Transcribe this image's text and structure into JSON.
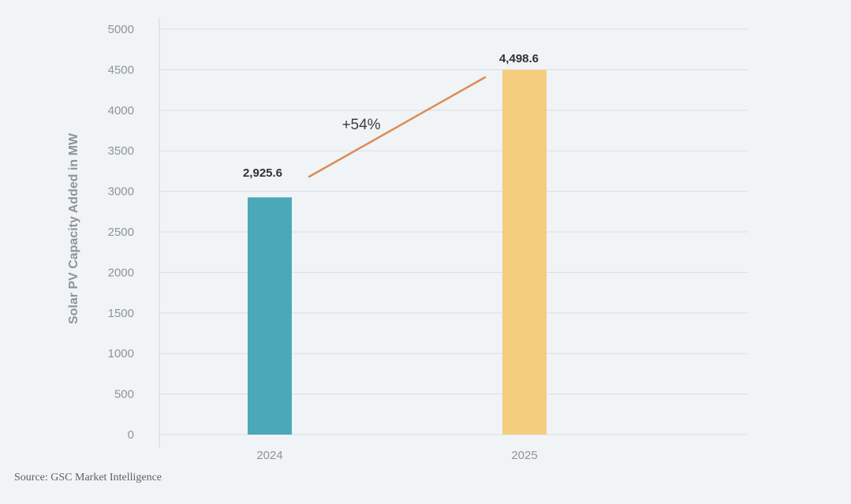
{
  "chart_data": {
    "type": "bar",
    "categories": [
      "2024",
      "2025"
    ],
    "values": [
      2925.6,
      4498.6
    ],
    "data_labels": [
      "2,925.6",
      "4,498.6"
    ],
    "bar_colors": [
      "#4ba8b8",
      "#f5cd7e"
    ],
    "ylabel": "Solar PV Capacity Added in MW",
    "ylim": [
      0,
      5000
    ],
    "yticks": [
      0,
      500,
      1000,
      1500,
      2000,
      2500,
      3000,
      3500,
      4000,
      4500,
      5000
    ],
    "grid": true,
    "annotation": {
      "text": "+54%",
      "color": "#de8b57"
    }
  },
  "source": "Source: GSC Market Intelligence"
}
